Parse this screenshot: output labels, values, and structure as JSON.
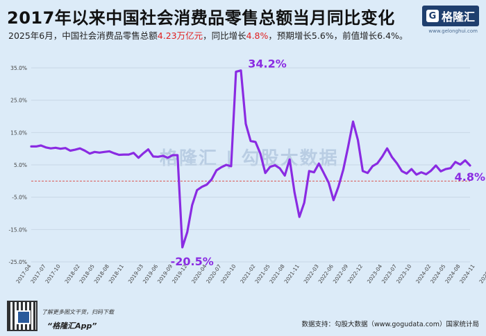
{
  "header": {
    "title": "2017年以来中国社会消费品零售总额当月同比变化",
    "subtitle_pre": "2025年6月，中国社会消费品零售总额",
    "subtitle_total": "4.23万亿元",
    "subtitle_mid": "，同比增长",
    "subtitle_growth": "4.8%",
    "subtitle_post": "，预期增长5.6%，前值增长6.4%。"
  },
  "logo": {
    "mark": "G",
    "name": "格隆汇",
    "url": "www.gelonghui.com"
  },
  "watermark": "格隆汇 | 勾股大数据",
  "footer": {
    "promo": "了解更多图文干货，扫码下载",
    "app": "“格隆汇App”",
    "source": "数据支持：勾股大数据（www.gogudata.com）国家统计局"
  },
  "colors": {
    "line": "#8a2be2",
    "zero_line": "#d9534f",
    "label": "#8a2be2"
  },
  "chart_data": {
    "type": "line",
    "title": "2017年以来中国社会消费品零售总额当月同比变化",
    "xlabel": "",
    "ylabel": "",
    "ylim": [
      -25,
      35
    ],
    "yticks": [
      35,
      25,
      15,
      5,
      -5,
      -15,
      -25
    ],
    "ytick_labels": [
      "35.0%",
      "25.0%",
      "15.0%",
      "5.0%",
      "-5.0%",
      "-15.0%",
      "-25.0%"
    ],
    "grid": "horizontal",
    "start": "2017-04",
    "xtick_labels": [
      "2017-04",
      "2017-07",
      "2017-10",
      "2018-02",
      "2018-05",
      "2018-08",
      "2018-11",
      "2019-03",
      "2019-06",
      "2019-09",
      "2019-12",
      "2020-04",
      "2020-07",
      "2020-10",
      "2021-02",
      "2021-05",
      "2021-08",
      "2021-11",
      "2022-03",
      "2022-06",
      "2022-09",
      "2022-12",
      "2023-04",
      "2023-07",
      "2023-10",
      "2024-02",
      "2024-05",
      "2024-08",
      "2024-11",
      "2025-03",
      "2025-06"
    ],
    "values": [
      10.7,
      10.7,
      11.0,
      10.4,
      10.1,
      10.3,
      10.0,
      10.2,
      9.4,
      9.7,
      10.1,
      9.4,
      8.5,
      9.0,
      8.8,
      9.0,
      9.2,
      8.6,
      8.1,
      8.2,
      8.2,
      8.7,
      7.2,
      8.6,
      9.8,
      7.6,
      7.5,
      7.8,
      7.2,
      8.0,
      8.0,
      -20.5,
      -15.8,
      -7.5,
      -2.8,
      -1.8,
      -1.1,
      0.5,
      3.3,
      4.3,
      5.0,
      4.6,
      33.8,
      34.2,
      17.7,
      12.4,
      12.1,
      8.5,
      2.5,
      4.4,
      4.9,
      3.9,
      1.7,
      6.7,
      -3.5,
      -11.1,
      -6.7,
      3.1,
      2.7,
      5.4,
      2.5,
      -0.5,
      -5.9,
      -1.8,
      3.5,
      10.6,
      18.4,
      12.7,
      3.1,
      2.5,
      4.6,
      5.5,
      7.6,
      10.1,
      7.4,
      5.5,
      3.1,
      2.3,
      3.7,
      2.0,
      2.7,
      2.1,
      3.2,
      4.8,
      3.0,
      3.7,
      4.0,
      5.9,
      5.1,
      6.4,
      4.8
    ],
    "annotations": [
      {
        "label": "34.2%",
        "x": "2021-03",
        "y": 34.2
      },
      {
        "label": "-20.5%",
        "x": "2020-01",
        "y": -20.5
      },
      {
        "label": "4.8%",
        "x": "2025-06",
        "y": 4.8
      }
    ]
  }
}
